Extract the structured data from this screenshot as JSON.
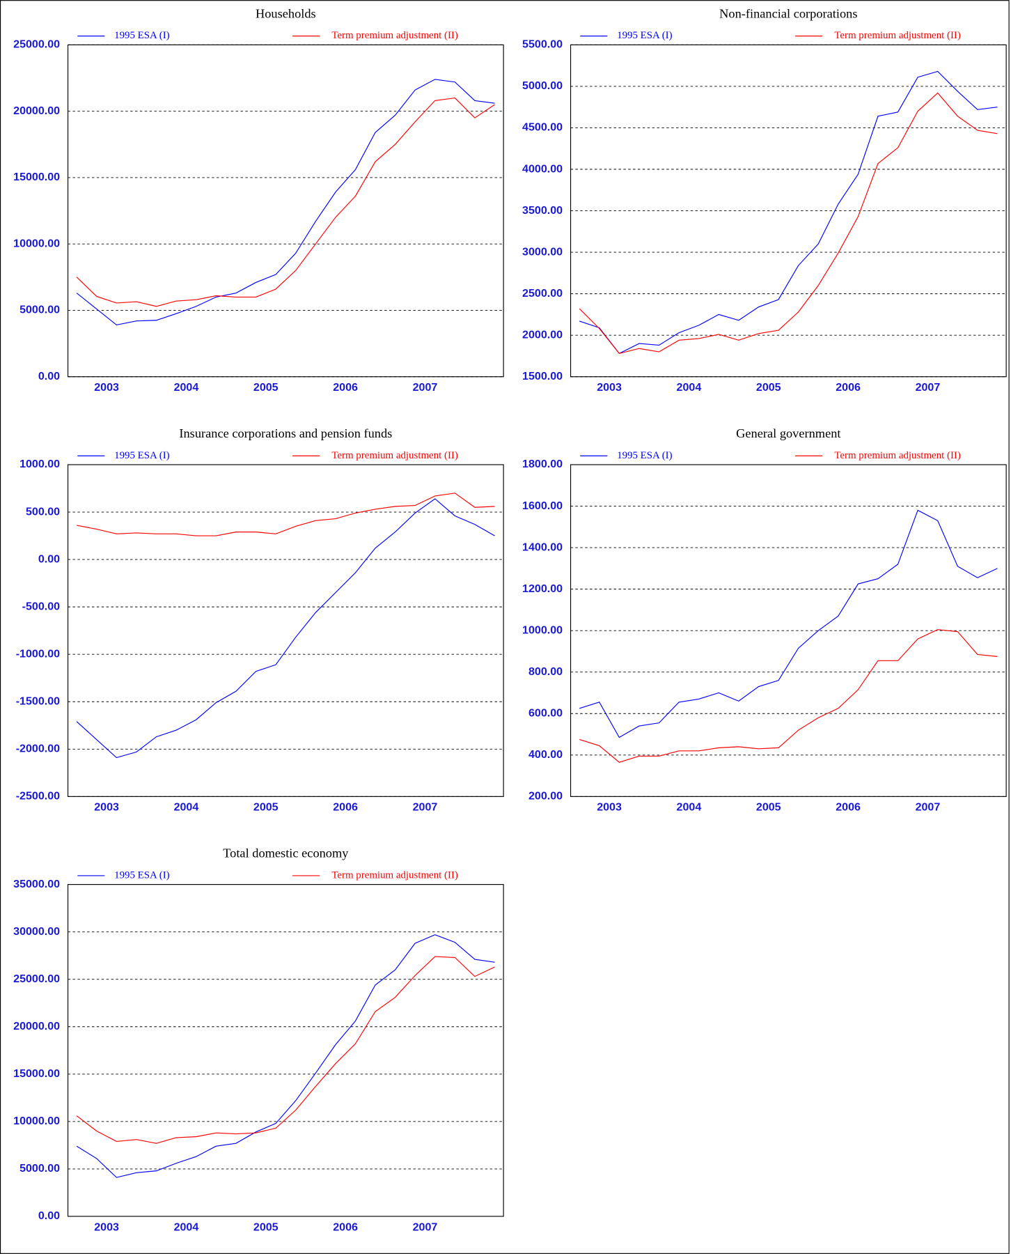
{
  "chart_data": [
    {
      "type": "line",
      "title": "Households",
      "x_labels": [
        "2003",
        "2004",
        "2005",
        "2006",
        "2007"
      ],
      "series": [
        {
          "name": "1995 ESA (I)",
          "color": "#0000ff",
          "values": [
            6300,
            5100,
            3900,
            4200,
            4250,
            4750,
            5300,
            6000,
            6300,
            7100,
            7700,
            9300,
            11700,
            13900,
            15600,
            18400,
            19700,
            21600,
            22400,
            22200,
            20800,
            20600
          ]
        },
        {
          "name": "Term premium adjustment (II)",
          "color": "#ff0000",
          "values": [
            7500,
            6050,
            5550,
            5650,
            5300,
            5700,
            5800,
            6100,
            6000,
            6000,
            6600,
            8000,
            10000,
            12000,
            13600,
            16200,
            17500,
            19200,
            20800,
            21000,
            19500,
            20500
          ]
        }
      ],
      "ylim": [
        0,
        25000
      ],
      "yticks": [
        {
          "value": 0,
          "label": "0.00"
        },
        {
          "value": 5000,
          "label": "5000.00"
        },
        {
          "value": 10000,
          "label": "10000.00"
        },
        {
          "value": 15000,
          "label": "15000.00"
        },
        {
          "value": 20000,
          "label": "20000.00"
        },
        {
          "value": 25000,
          "label": "25000.00"
        }
      ],
      "grid": true
    },
    {
      "type": "line",
      "title": "Non-financial corporations",
      "x_labels": [
        "2003",
        "2004",
        "2005",
        "2006",
        "2007"
      ],
      "series": [
        {
          "name": "1995 ESA (I)",
          "color": "#0000ff",
          "values": [
            2170,
            2090,
            1780,
            1900,
            1880,
            2030,
            2120,
            2250,
            2180,
            2340,
            2430,
            2840,
            3100,
            3580,
            3940,
            4640,
            4690,
            5110,
            5180,
            4940,
            4720,
            4750
          ]
        },
        {
          "name": "Term premium adjustment (II)",
          "color": "#ff0000",
          "values": [
            2320,
            2080,
            1780,
            1840,
            1800,
            1940,
            1960,
            2010,
            1940,
            2020,
            2060,
            2280,
            2600,
            2990,
            3430,
            4070,
            4260,
            4700,
            4920,
            4640,
            4470,
            4430
          ]
        }
      ],
      "ylim": [
        1500,
        5500
      ],
      "yticks": [
        {
          "value": 1500,
          "label": "1500.00"
        },
        {
          "value": 2000,
          "label": "2000.00"
        },
        {
          "value": 2500,
          "label": "2500.00"
        },
        {
          "value": 3000,
          "label": "3000.00"
        },
        {
          "value": 3500,
          "label": "3500.00"
        },
        {
          "value": 4000,
          "label": "4000.00"
        },
        {
          "value": 4500,
          "label": "4500.00"
        },
        {
          "value": 5000,
          "label": "5000.00"
        },
        {
          "value": 5500,
          "label": "5500.00"
        }
      ],
      "grid": true
    },
    {
      "type": "line",
      "title": "Insurance corporations and pension funds",
      "x_labels": [
        "2003",
        "2004",
        "2005",
        "2006",
        "2007"
      ],
      "series": [
        {
          "name": "1995 ESA (I)",
          "color": "#0000ff",
          "values": [
            -1710,
            -1900,
            -2090,
            -2030,
            -1870,
            -1800,
            -1690,
            -1510,
            -1390,
            -1180,
            -1110,
            -820,
            -560,
            -350,
            -140,
            120,
            290,
            490,
            640,
            460,
            370,
            250
          ]
        },
        {
          "name": "Term premium adjustment (II)",
          "color": "#ff0000",
          "values": [
            360,
            320,
            270,
            280,
            270,
            270,
            250,
            250,
            290,
            290,
            270,
            350,
            410,
            430,
            490,
            530,
            560,
            570,
            670,
            700,
            550,
            560
          ]
        }
      ],
      "ylim": [
        -2500,
        1000
      ],
      "yticks": [
        {
          "value": -2500,
          "label": "-2500.00"
        },
        {
          "value": -2000,
          "label": "-2000.00"
        },
        {
          "value": -1500,
          "label": "-1500.00"
        },
        {
          "value": -1000,
          "label": "-1000.00"
        },
        {
          "value": -500,
          "label": "-500.00"
        },
        {
          "value": 0,
          "label": "0.00"
        },
        {
          "value": 500,
          "label": "500.00"
        },
        {
          "value": 1000,
          "label": "1000.00"
        }
      ],
      "grid": true
    },
    {
      "type": "line",
      "title": "General government",
      "x_labels": [
        "2003",
        "2004",
        "2005",
        "2006",
        "2007"
      ],
      "series": [
        {
          "name": "1995 ESA (I)",
          "color": "#0000ff",
          "values": [
            625,
            655,
            485,
            540,
            555,
            655,
            670,
            700,
            660,
            730,
            760,
            915,
            1000,
            1070,
            1225,
            1250,
            1320,
            1580,
            1530,
            1310,
            1255,
            1300
          ]
        },
        {
          "name": "Term premium adjustment (II)",
          "color": "#ff0000",
          "values": [
            475,
            445,
            365,
            395,
            395,
            420,
            420,
            435,
            440,
            430,
            435,
            520,
            580,
            625,
            715,
            855,
            855,
            960,
            1005,
            995,
            885,
            875
          ]
        }
      ],
      "ylim": [
        200,
        1800
      ],
      "yticks": [
        {
          "value": 200,
          "label": "200.00"
        },
        {
          "value": 400,
          "label": "400.00"
        },
        {
          "value": 600,
          "label": "600.00"
        },
        {
          "value": 800,
          "label": "800.00"
        },
        {
          "value": 1000,
          "label": "1000.00"
        },
        {
          "value": 1200,
          "label": "1200.00"
        },
        {
          "value": 1400,
          "label": "1400.00"
        },
        {
          "value": 1600,
          "label": "1600.00"
        },
        {
          "value": 1800,
          "label": "1800.00"
        }
      ],
      "grid": true
    },
    {
      "type": "line",
      "title": "Total domestic economy",
      "x_labels": [
        "2003",
        "2004",
        "2005",
        "2006",
        "2007"
      ],
      "series": [
        {
          "name": "1995 ESA (I)",
          "color": "#0000ff",
          "values": [
            7400,
            6100,
            4100,
            4600,
            4800,
            5600,
            6300,
            7400,
            7700,
            8900,
            9800,
            12200,
            15100,
            18100,
            20600,
            24400,
            26000,
            28800,
            29700,
            28900,
            27100,
            26800
          ]
        },
        {
          "name": "Term premium adjustment (II)",
          "color": "#ff0000",
          "values": [
            10600,
            9000,
            7900,
            8100,
            7700,
            8300,
            8400,
            8800,
            8700,
            8800,
            9300,
            11200,
            13700,
            16100,
            18200,
            21600,
            23100,
            25400,
            27400,
            27300,
            25300,
            26300
          ]
        }
      ],
      "ylim": [
        0,
        35000
      ],
      "yticks": [
        {
          "value": 0,
          "label": "0.00"
        },
        {
          "value": 5000,
          "label": "5000.00"
        },
        {
          "value": 10000,
          "label": "10000.00"
        },
        {
          "value": 15000,
          "label": "15000.00"
        },
        {
          "value": 20000,
          "label": "20000.00"
        },
        {
          "value": 25000,
          "label": "25000.00"
        },
        {
          "value": 30000,
          "label": "30000.00"
        },
        {
          "value": 35000,
          "label": "35000.00"
        }
      ],
      "grid": true
    }
  ]
}
